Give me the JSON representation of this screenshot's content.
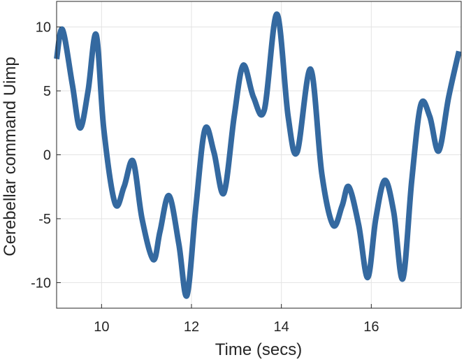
{
  "chart_data": {
    "type": "line",
    "title": "",
    "xlabel": "Time (secs)",
    "ylabel": "Cerebellar command Uimp",
    "xlim": [
      9,
      18
    ],
    "ylim": [
      -12,
      12
    ],
    "xticks": [
      10,
      12,
      14,
      16
    ],
    "yticks": [
      -10,
      -5,
      0,
      5,
      10
    ],
    "grid": true,
    "line_color": "#3469a0",
    "series": [
      {
        "x": [
          9.0,
          9.13,
          9.35,
          9.52,
          9.7,
          9.88,
          10.05,
          10.3,
          10.5,
          10.7,
          10.9,
          11.15,
          11.3,
          11.5,
          11.72,
          11.9,
          12.1,
          12.3,
          12.5,
          12.72,
          12.95,
          13.15,
          13.38,
          13.62,
          13.9,
          14.15,
          14.35,
          14.65,
          14.9,
          15.15,
          15.35,
          15.5,
          15.72,
          15.92,
          16.1,
          16.3,
          16.5,
          16.7,
          16.9,
          17.1,
          17.3,
          17.5,
          17.72,
          17.95
        ],
        "y": [
          7.5,
          9.8,
          5.5,
          2.1,
          5.0,
          9.4,
          2.0,
          -3.8,
          -2.5,
          -0.5,
          -5.0,
          -8.2,
          -6.0,
          -3.2,
          -7.0,
          -11.0,
          -4.0,
          2.0,
          0.2,
          -3.0,
          3.0,
          7.0,
          4.5,
          3.5,
          11.0,
          3.0,
          0.2,
          6.7,
          -1.5,
          -5.5,
          -4.0,
          -2.5,
          -5.5,
          -9.6,
          -5.0,
          -2.0,
          -4.5,
          -9.7,
          -2.0,
          3.9,
          3.0,
          0.3,
          4.5,
          8.1
        ]
      }
    ]
  }
}
